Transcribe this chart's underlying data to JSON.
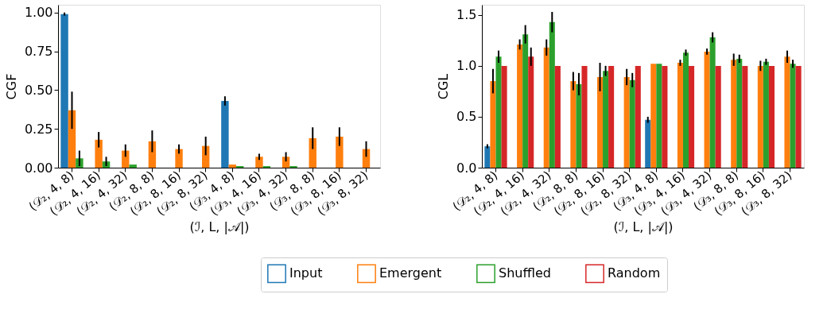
{
  "chart_data": [
    {
      "type": "bar",
      "ylabel": "CGF",
      "xlabel": "(ℐ, L, |𝒜|)",
      "categories": [
        "(𝒟₂, 4, 8)",
        "(𝒟₂, 4, 16)",
        "(𝒟₂, 4, 32)",
        "(𝒟₂, 8, 8)",
        "(𝒟₂, 8, 16)",
        "(𝒟₂, 8, 32)",
        "(𝒟₃, 4, 8)",
        "(𝒟₃, 4, 16)",
        "(𝒟₃, 4, 32)",
        "(𝒟₃, 8, 8)",
        "(𝒟₃, 8, 16)",
        "(𝒟₃, 8, 32)"
      ],
      "ylim": [
        0,
        1.05
      ],
      "yticks": [
        {
          "value": 0,
          "label": "0.00"
        },
        0.25,
        {
          "value": 0.5,
          "label": "0.50"
        },
        0.75,
        {
          "value": 1,
          "label": "1.00"
        }
      ],
      "grid": false,
      "legend": "bottom",
      "series": [
        {
          "name": "Input",
          "color": "#1f77b4",
          "values": [
            0.99,
            null,
            null,
            null,
            null,
            null,
            0.43,
            null,
            null,
            null,
            null,
            null
          ],
          "errors": [
            0.01,
            null,
            null,
            null,
            null,
            null,
            0.03,
            null,
            null,
            null,
            null,
            null
          ]
        },
        {
          "name": "Emergent",
          "color": "#ff7f0e",
          "values": [
            0.37,
            0.18,
            0.11,
            0.17,
            0.12,
            0.14,
            0.02,
            0.07,
            0.07,
            0.19,
            0.2,
            0.12
          ],
          "errors": [
            0.12,
            0.05,
            0.04,
            0.07,
            0.03,
            0.06,
            null,
            0.02,
            0.03,
            0.07,
            0.06,
            0.05
          ]
        },
        {
          "name": "Shuffled",
          "color": "#2ca02c",
          "values": [
            0.06,
            0.04,
            0.02,
            null,
            null,
            null,
            0.01,
            0.01,
            0.01,
            null,
            null,
            null
          ],
          "errors": [
            0.05,
            0.03,
            null,
            null,
            null,
            null,
            null,
            null,
            null,
            null,
            null,
            null
          ]
        }
      ]
    },
    {
      "type": "bar",
      "ylabel": "CGL",
      "xlabel": "(ℐ, L, |𝒜|)",
      "categories": [
        "(𝒟₂, 4, 8)",
        "(𝒟₂, 4, 16)",
        "(𝒟₂, 4, 32)",
        "(𝒟₂, 8, 8)",
        "(𝒟₂, 8, 16)",
        "(𝒟₂, 8, 32)",
        "(𝒟₃, 4, 8)",
        "(𝒟₃, 4, 16)",
        "(𝒟₃, 4, 32)",
        "(𝒟₃, 8, 8)",
        "(𝒟₃, 8, 16)",
        "(𝒟₃, 8, 32)"
      ],
      "ylim": [
        0,
        1.6
      ],
      "yticks": [
        {
          "value": 0,
          "label": "0.0"
        },
        0.5,
        {
          "value": 1,
          "label": "1.0"
        },
        1.5
      ],
      "grid": false,
      "legend": "bottom",
      "series": [
        {
          "name": "Input",
          "color": "#1f77b4",
          "values": [
            0.21,
            null,
            null,
            null,
            null,
            null,
            0.47,
            null,
            null,
            null,
            null,
            null
          ],
          "errors": [
            0.02,
            null,
            null,
            null,
            null,
            null,
            0.03,
            null,
            null,
            null,
            null,
            null
          ]
        },
        {
          "name": "Emergent",
          "color": "#ff7f0e",
          "values": [
            0.85,
            1.21,
            1.18,
            0.85,
            0.89,
            0.89,
            1.02,
            1.03,
            1.14,
            1.06,
            1.0,
            1.09
          ],
          "errors": [
            0.12,
            0.05,
            0.08,
            0.09,
            0.14,
            0.08,
            null,
            0.03,
            0.03,
            0.06,
            0.05,
            0.06
          ]
        },
        {
          "name": "Shuffled",
          "color": "#2ca02c",
          "values": [
            1.09,
            1.31,
            1.43,
            0.82,
            0.95,
            0.86,
            1.02,
            1.13,
            1.28,
            1.07,
            1.04,
            1.02
          ],
          "errors": [
            0.06,
            0.09,
            0.1,
            0.11,
            0.05,
            0.07,
            null,
            0.03,
            0.05,
            0.04,
            0.03,
            0.04
          ]
        },
        {
          "name": "Random",
          "color": "#d62728",
          "values": [
            1.0,
            1.09,
            1.0,
            1.0,
            1.0,
            1.0,
            1.0,
            1.0,
            1.0,
            1.0,
            1.0,
            1.0
          ],
          "errors": [
            null,
            0.09,
            null,
            null,
            null,
            null,
            null,
            null,
            null,
            null,
            null,
            null
          ]
        }
      ]
    }
  ]
}
